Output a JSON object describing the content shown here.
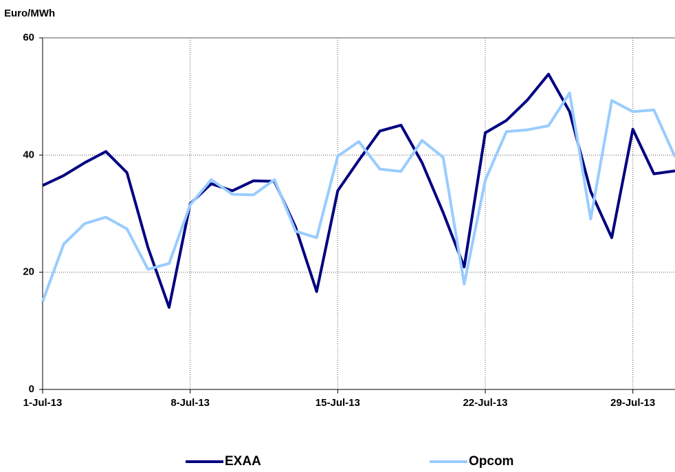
{
  "chart_data": {
    "type": "line",
    "y_label": "Euro/MWh",
    "categories": [
      "1-Jul-13",
      null,
      null,
      null,
      null,
      null,
      null,
      "8-Jul-13",
      null,
      null,
      null,
      null,
      null,
      null,
      "15-Jul-13",
      null,
      null,
      null,
      null,
      null,
      null,
      "22-Jul-13",
      null,
      null,
      null,
      null,
      null,
      null,
      "29-Jul-13",
      null,
      null
    ],
    "series": [
      {
        "name": "EXAA",
        "color": "#000080",
        "values": [
          34.8,
          36.5,
          38.7,
          40.6,
          37.0,
          24.2,
          14.0,
          31.7,
          35.1,
          33.9,
          35.6,
          35.5,
          27.7,
          16.7,
          33.9,
          39.1,
          44.1,
          45.1,
          38.7,
          30.2,
          20.9,
          43.8,
          45.9,
          49.4,
          53.8,
          47.4,
          33.8,
          25.9,
          44.4,
          36.8,
          37.3
        ]
      },
      {
        "name": "Opcom",
        "color": "#99ccff",
        "values": [
          15.0,
          24.8,
          28.3,
          29.4,
          27.4,
          20.5,
          21.5,
          31.5,
          35.8,
          33.3,
          33.2,
          35.8,
          27.0,
          25.9,
          39.8,
          42.3,
          37.6,
          37.2,
          42.5,
          39.6,
          18.0,
          35.7,
          44.0,
          44.3,
          45.0,
          50.6,
          29.1,
          49.3,
          47.4,
          47.7,
          39.7
        ]
      }
    ],
    "ylim": [
      0,
      60
    ],
    "yticks": [
      0,
      20,
      40,
      60
    ],
    "grid": true
  }
}
